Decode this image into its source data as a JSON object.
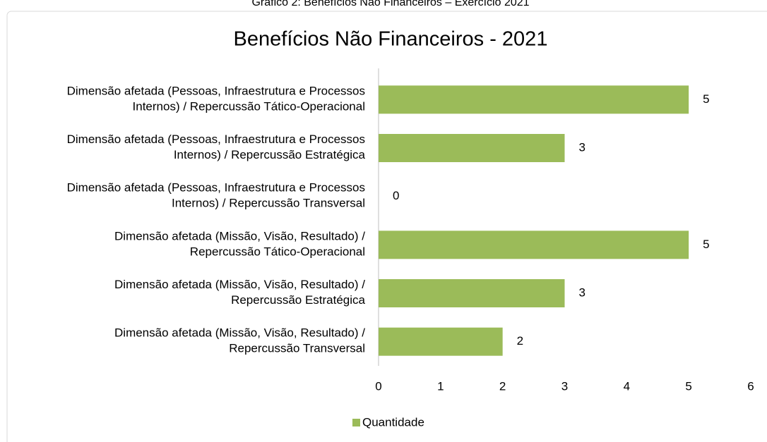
{
  "caption": "Gráfico 2: Benefícios Não Financeiros – Exercício 2021",
  "chart_data": {
    "type": "bar",
    "orientation": "horizontal",
    "title": "Benefícios Não Financeiros - 2021",
    "categories": [
      "Dimensão afetada (Pessoas, Infraestrutura e Processos\nInternos) / Repercussão Tático-Operacional",
      "Dimensão afetada (Pessoas, Infraestrutura e Processos\nInternos) / Repercussão Estratégica",
      "Dimensão afetada (Pessoas, Infraestrutura e Processos\nInternos)  / Repercussão Transversal",
      "Dimensão afetada (Missão, Visão, Resultado) /\nRepercussão Tático-Operacional",
      "Dimensão afetada (Missão, Visão, Resultado) /\nRepercussão Estratégica",
      "Dimensão afetada (Missão, Visão, Resultado) /\nRepercussão Transversal"
    ],
    "series": [
      {
        "name": "Quantidade",
        "color": "#9bbb59",
        "values": [
          5,
          3,
          0,
          5,
          3,
          2
        ]
      }
    ],
    "xlim": [
      0,
      6
    ],
    "xticks": [
      0,
      1,
      2,
      3,
      4,
      5,
      6
    ],
    "grid": false,
    "legend": "bottom"
  }
}
